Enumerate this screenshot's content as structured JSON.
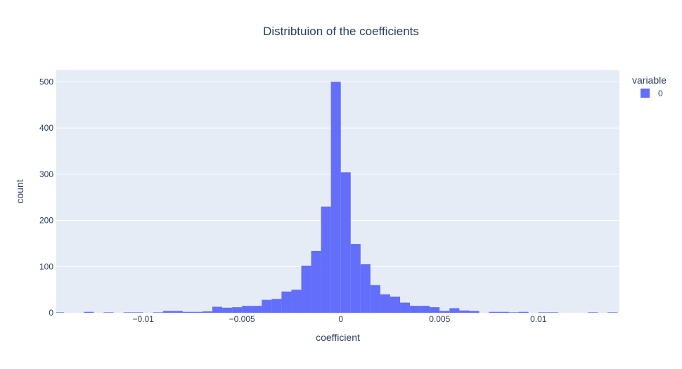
{
  "chart_data": {
    "type": "bar",
    "title": "Distribtuion of the coefficients",
    "xlabel": "coefficient",
    "ylabel": "count",
    "legend": {
      "title": "variable",
      "placement": "top-right",
      "entries": [
        "0"
      ]
    },
    "xlim": [
      -0.0144,
      0.0141
    ],
    "ylim": [
      0,
      525
    ],
    "grid": true,
    "bin_width": 0.0005,
    "x_ticks": [
      {
        "value": -0.01,
        "label": "−0.01"
      },
      {
        "value": -0.005,
        "label": "−0.005"
      },
      {
        "value": 0,
        "label": "0"
      },
      {
        "value": 0.005,
        "label": "0.005"
      },
      {
        "value": 0.01,
        "label": "0.01"
      }
    ],
    "y_ticks": [
      {
        "value": 0,
        "label": "0"
      },
      {
        "value": 100,
        "label": "100"
      },
      {
        "value": 200,
        "label": "200"
      },
      {
        "value": 300,
        "label": "300"
      },
      {
        "value": 400,
        "label": "400"
      },
      {
        "value": 500,
        "label": "500"
      }
    ],
    "series": [
      {
        "name": "0",
        "color": "#636efa",
        "bins": [
          {
            "x0": -0.0145,
            "count": 1
          },
          {
            "x0": -0.013,
            "count": 2
          },
          {
            "x0": -0.012,
            "count": 1
          },
          {
            "x0": -0.011,
            "count": 1
          },
          {
            "x0": -0.0105,
            "count": 1
          },
          {
            "x0": -0.0095,
            "count": 1
          },
          {
            "x0": -0.009,
            "count": 4
          },
          {
            "x0": -0.0085,
            "count": 4
          },
          {
            "x0": -0.008,
            "count": 2
          },
          {
            "x0": -0.0075,
            "count": 2
          },
          {
            "x0": -0.007,
            "count": 3
          },
          {
            "x0": -0.0065,
            "count": 13
          },
          {
            "x0": -0.006,
            "count": 11
          },
          {
            "x0": -0.0055,
            "count": 12
          },
          {
            "x0": -0.005,
            "count": 15
          },
          {
            "x0": -0.0045,
            "count": 15
          },
          {
            "x0": -0.004,
            "count": 28
          },
          {
            "x0": -0.0035,
            "count": 30
          },
          {
            "x0": -0.003,
            "count": 46
          },
          {
            "x0": -0.0025,
            "count": 50
          },
          {
            "x0": -0.002,
            "count": 102
          },
          {
            "x0": -0.0015,
            "count": 134
          },
          {
            "x0": -0.001,
            "count": 230
          },
          {
            "x0": -0.0005,
            "count": 500
          },
          {
            "x0": 0.0,
            "count": 304
          },
          {
            "x0": 0.0005,
            "count": 149
          },
          {
            "x0": 0.001,
            "count": 105
          },
          {
            "x0": 0.0015,
            "count": 60
          },
          {
            "x0": 0.002,
            "count": 40
          },
          {
            "x0": 0.0025,
            "count": 35
          },
          {
            "x0": 0.003,
            "count": 22
          },
          {
            "x0": 0.0035,
            "count": 15
          },
          {
            "x0": 0.004,
            "count": 15
          },
          {
            "x0": 0.0045,
            "count": 12
          },
          {
            "x0": 0.005,
            "count": 4
          },
          {
            "x0": 0.0055,
            "count": 10
          },
          {
            "x0": 0.006,
            "count": 5
          },
          {
            "x0": 0.0065,
            "count": 4
          },
          {
            "x0": 0.0075,
            "count": 2
          },
          {
            "x0": 0.008,
            "count": 2
          },
          {
            "x0": 0.0085,
            "count": 1
          },
          {
            "x0": 0.009,
            "count": 2
          },
          {
            "x0": 0.01,
            "count": 1
          },
          {
            "x0": 0.0105,
            "count": 1
          },
          {
            "x0": 0.0125,
            "count": 1
          },
          {
            "x0": 0.0135,
            "count": 1
          }
        ]
      }
    ]
  }
}
